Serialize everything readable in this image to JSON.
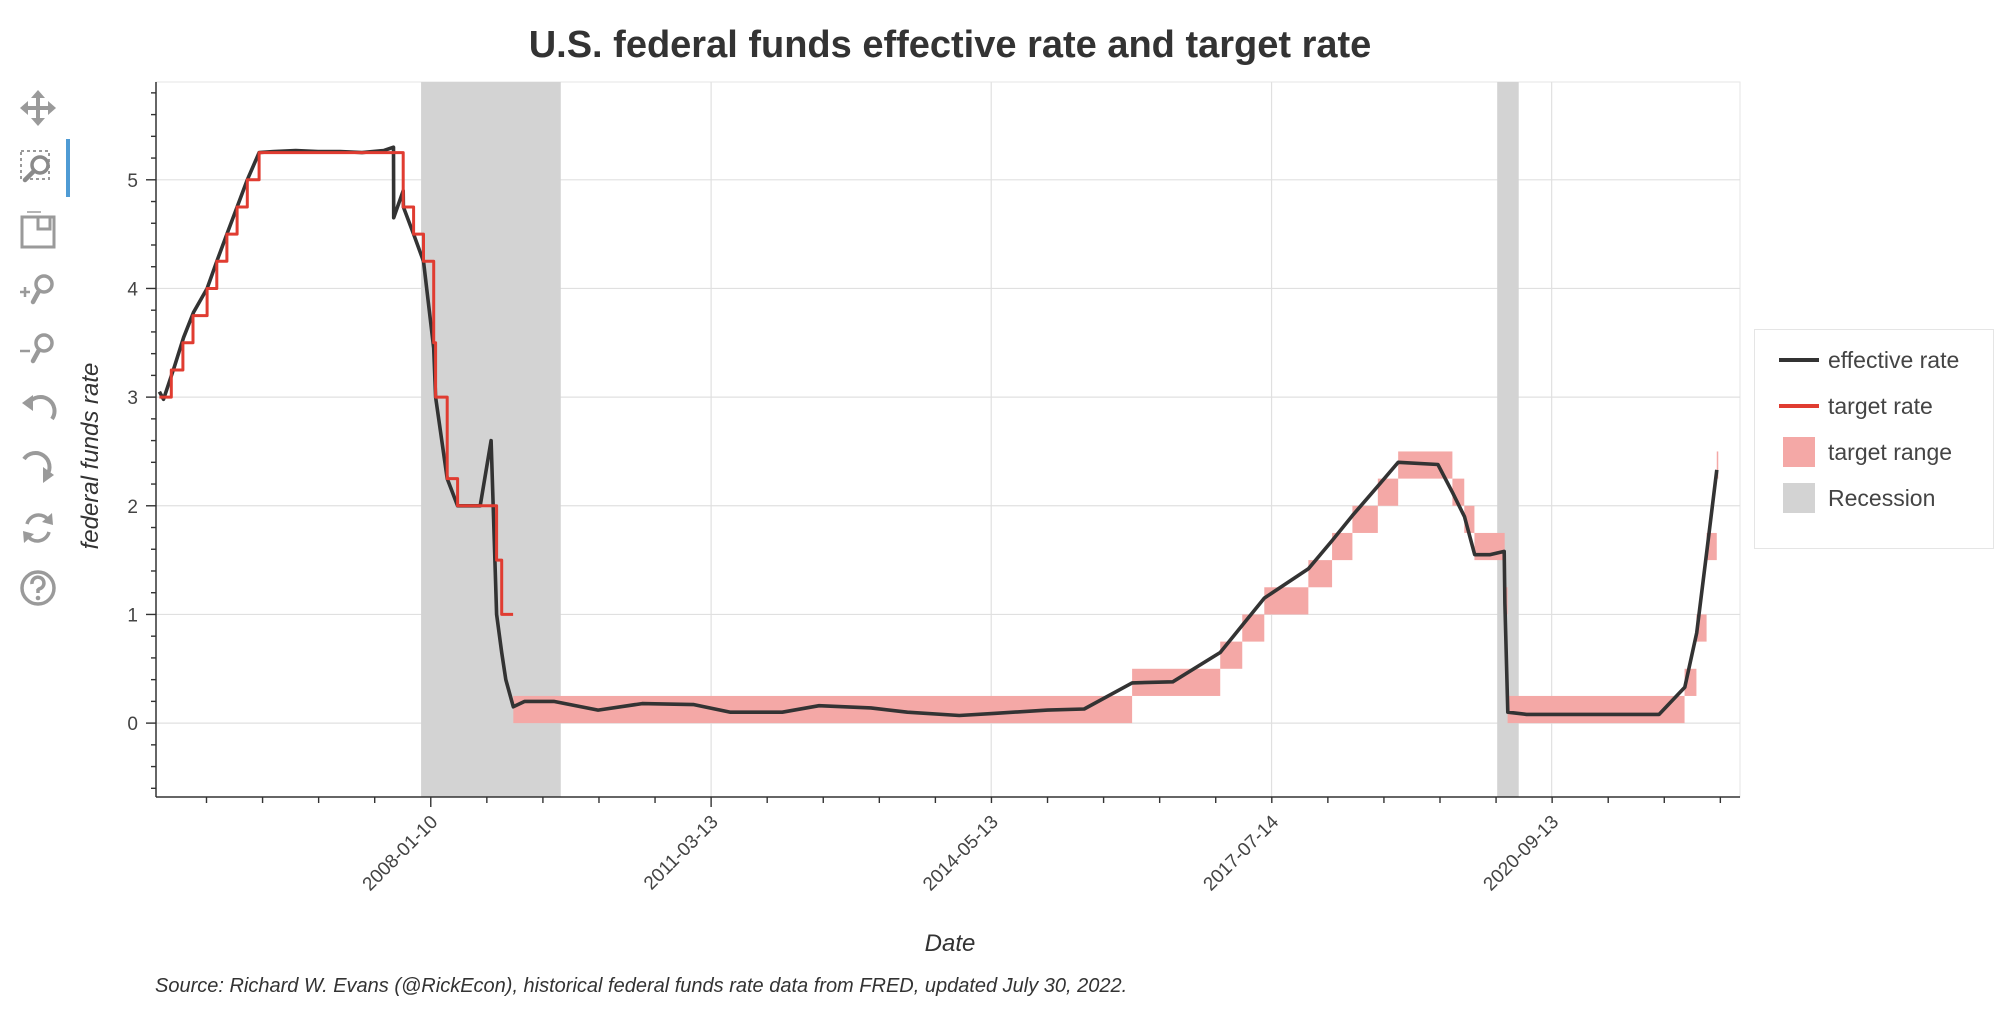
{
  "chart_data": {
    "type": "line",
    "title": "U.S. federal funds effective rate and target rate",
    "xlabel": "Date",
    "ylabel": "federal funds rate",
    "x_range": [
      "2004-12-01",
      "2022-10-31"
    ],
    "ylim": [
      -0.68,
      5.9
    ],
    "grid": true,
    "legend_position": "right",
    "x_ticks": [
      "2008-01-10",
      "2011-03-13",
      "2014-05-13",
      "2017-07-14",
      "2020-09-13"
    ],
    "y_ticks": [
      0,
      1,
      2,
      3,
      4,
      5
    ],
    "series": [
      {
        "name": "effective rate",
        "color": "#333333",
        "points": [
          [
            "2004-12-15",
            3.05
          ],
          [
            "2005-01-01",
            2.98
          ],
          [
            "2005-02-15",
            3.28
          ],
          [
            "2005-03-25",
            3.55
          ],
          [
            "2005-05-05",
            3.78
          ],
          [
            "2005-06-30",
            4.0
          ],
          [
            "2005-08-09",
            4.25
          ],
          [
            "2005-09-20",
            4.5
          ],
          [
            "2005-11-01",
            4.75
          ],
          [
            "2005-12-13",
            5.0
          ],
          [
            "2006-01-31",
            5.25
          ],
          [
            "2006-04-01",
            5.26
          ],
          [
            "2006-07-01",
            5.27
          ],
          [
            "2006-10-01",
            5.26
          ],
          [
            "2007-01-01",
            5.26
          ],
          [
            "2007-04-01",
            5.25
          ],
          [
            "2007-07-01",
            5.27
          ],
          [
            "2007-08-09",
            5.3
          ],
          [
            "2007-08-10",
            4.65
          ],
          [
            "2007-09-18",
            4.9
          ],
          [
            "2007-09-19",
            4.75
          ],
          [
            "2007-10-31",
            4.5
          ],
          [
            "2007-12-11",
            4.25
          ],
          [
            "2008-01-22",
            3.45
          ],
          [
            "2008-01-30",
            3.0
          ],
          [
            "2008-03-18",
            2.25
          ],
          [
            "2008-04-30",
            2.0
          ],
          [
            "2008-06-01",
            2.0
          ],
          [
            "2008-08-01",
            2.0
          ],
          [
            "2008-09-15",
            2.6
          ],
          [
            "2008-10-01",
            1.5
          ],
          [
            "2008-10-08",
            1.0
          ],
          [
            "2008-10-29",
            0.65
          ],
          [
            "2008-11-15",
            0.4
          ],
          [
            "2008-12-16",
            0.15
          ],
          [
            "2009-02-01",
            0.2
          ],
          [
            "2009-06-01",
            0.2
          ],
          [
            "2009-12-01",
            0.12
          ],
          [
            "2010-06-01",
            0.18
          ],
          [
            "2011-01-01",
            0.17
          ],
          [
            "2011-06-01",
            0.1
          ],
          [
            "2012-01-01",
            0.1
          ],
          [
            "2012-06-01",
            0.16
          ],
          [
            "2013-01-01",
            0.14
          ],
          [
            "2013-06-01",
            0.1
          ],
          [
            "2014-01-01",
            0.07
          ],
          [
            "2014-06-01",
            0.09
          ],
          [
            "2015-01-01",
            0.12
          ],
          [
            "2015-06-01",
            0.13
          ],
          [
            "2015-12-16",
            0.37
          ],
          [
            "2016-06-01",
            0.38
          ],
          [
            "2016-12-14",
            0.65
          ],
          [
            "2017-03-15",
            0.9
          ],
          [
            "2017-06-14",
            1.15
          ],
          [
            "2017-12-13",
            1.42
          ],
          [
            "2018-03-21",
            1.68
          ],
          [
            "2018-06-13",
            1.91
          ],
          [
            "2018-09-26",
            2.18
          ],
          [
            "2018-12-19",
            2.4
          ],
          [
            "2019-06-01",
            2.38
          ],
          [
            "2019-08-01",
            2.12
          ],
          [
            "2019-09-19",
            1.9
          ],
          [
            "2019-10-31",
            1.55
          ],
          [
            "2020-01-01",
            1.55
          ],
          [
            "2020-03-01",
            1.58
          ],
          [
            "2020-03-04",
            1.1
          ],
          [
            "2020-03-16",
            0.1
          ],
          [
            "2020-06-01",
            0.08
          ],
          [
            "2021-01-01",
            0.08
          ],
          [
            "2021-06-17",
            0.08
          ],
          [
            "2021-12-01",
            0.08
          ],
          [
            "2022-03-17",
            0.33
          ],
          [
            "2022-05-05",
            0.83
          ],
          [
            "2022-06-16",
            1.58
          ],
          [
            "2022-07-27",
            2.33
          ]
        ]
      },
      {
        "name": "target rate",
        "color": "#e03c31",
        "points": [
          [
            "2004-12-15",
            3.0
          ],
          [
            "2005-02-02",
            3.25
          ],
          [
            "2005-03-22",
            3.5
          ],
          [
            "2005-05-03",
            3.75
          ],
          [
            "2005-06-30",
            4.0
          ],
          [
            "2005-08-09",
            4.25
          ],
          [
            "2005-09-20",
            4.5
          ],
          [
            "2005-11-01",
            4.75
          ],
          [
            "2005-12-13",
            5.0
          ],
          [
            "2006-01-31",
            5.25
          ],
          [
            "2007-09-18",
            4.75
          ],
          [
            "2007-10-31",
            4.5
          ],
          [
            "2007-12-11",
            4.25
          ],
          [
            "2008-01-22",
            3.5
          ],
          [
            "2008-01-30",
            3.0
          ],
          [
            "2008-03-18",
            2.25
          ],
          [
            "2008-04-30",
            2.0
          ],
          [
            "2008-10-08",
            1.5
          ],
          [
            "2008-10-29",
            1.0
          ],
          [
            "2008-12-15",
            1.0
          ]
        ]
      }
    ],
    "bands": [
      {
        "name": "target range",
        "color": "#f4a8a6",
        "ranges": [
          [
            "2008-12-16",
            "2015-12-16",
            0.0,
            0.25
          ],
          [
            "2015-12-16",
            "2016-12-14",
            0.25,
            0.5
          ],
          [
            "2016-12-14",
            "2017-03-15",
            0.5,
            0.75
          ],
          [
            "2017-03-15",
            "2017-06-14",
            0.75,
            1.0
          ],
          [
            "2017-06-14",
            "2017-12-13",
            1.0,
            1.25
          ],
          [
            "2017-12-13",
            "2018-03-21",
            1.25,
            1.5
          ],
          [
            "2018-03-21",
            "2018-06-13",
            1.5,
            1.75
          ],
          [
            "2018-06-13",
            "2018-09-26",
            1.75,
            2.0
          ],
          [
            "2018-09-26",
            "2018-12-19",
            2.0,
            2.25
          ],
          [
            "2018-12-19",
            "2019-07-31",
            2.25,
            2.5
          ],
          [
            "2019-07-31",
            "2019-09-18",
            2.0,
            2.25
          ],
          [
            "2019-09-18",
            "2019-10-30",
            1.75,
            2.0
          ],
          [
            "2019-10-30",
            "2020-03-03",
            1.5,
            1.75
          ],
          [
            "2020-03-03",
            "2020-03-15",
            1.0,
            1.25
          ],
          [
            "2020-03-15",
            "2022-03-16",
            0.0,
            0.25
          ],
          [
            "2022-03-16",
            "2022-05-04",
            0.25,
            0.5
          ],
          [
            "2022-05-04",
            "2022-06-15",
            0.75,
            1.0
          ],
          [
            "2022-06-15",
            "2022-07-27",
            1.5,
            1.75
          ],
          [
            "2022-07-27",
            "2022-07-31",
            2.25,
            2.5
          ]
        ]
      },
      {
        "name": "Recession",
        "color": "#d3d3d3",
        "ranges": [
          [
            "2007-12-01",
            "2009-06-30"
          ],
          [
            "2020-02-01",
            "2020-04-30"
          ]
        ]
      }
    ],
    "source": "Source: Richard W. Evans (@RickEcon), historical federal funds rate data from FRED, updated July 30, 2022."
  },
  "toolbar": {
    "tools": [
      {
        "name": "pan-tool",
        "icon": "move-arrows-icon"
      },
      {
        "name": "box-zoom-tool",
        "icon": "box-zoom-icon"
      },
      {
        "name": "save-tool",
        "icon": "save-icon"
      },
      {
        "name": "zoom-in-tool",
        "icon": "zoom-in-icon"
      },
      {
        "name": "zoom-out-tool",
        "icon": "zoom-out-icon"
      },
      {
        "name": "undo-tool",
        "icon": "undo-icon"
      },
      {
        "name": "redo-tool",
        "icon": "redo-icon"
      },
      {
        "name": "reset-tool",
        "icon": "reset-icon"
      },
      {
        "name": "help-tool",
        "icon": "help-icon"
      }
    ],
    "active_tool": "box-zoom-tool"
  }
}
